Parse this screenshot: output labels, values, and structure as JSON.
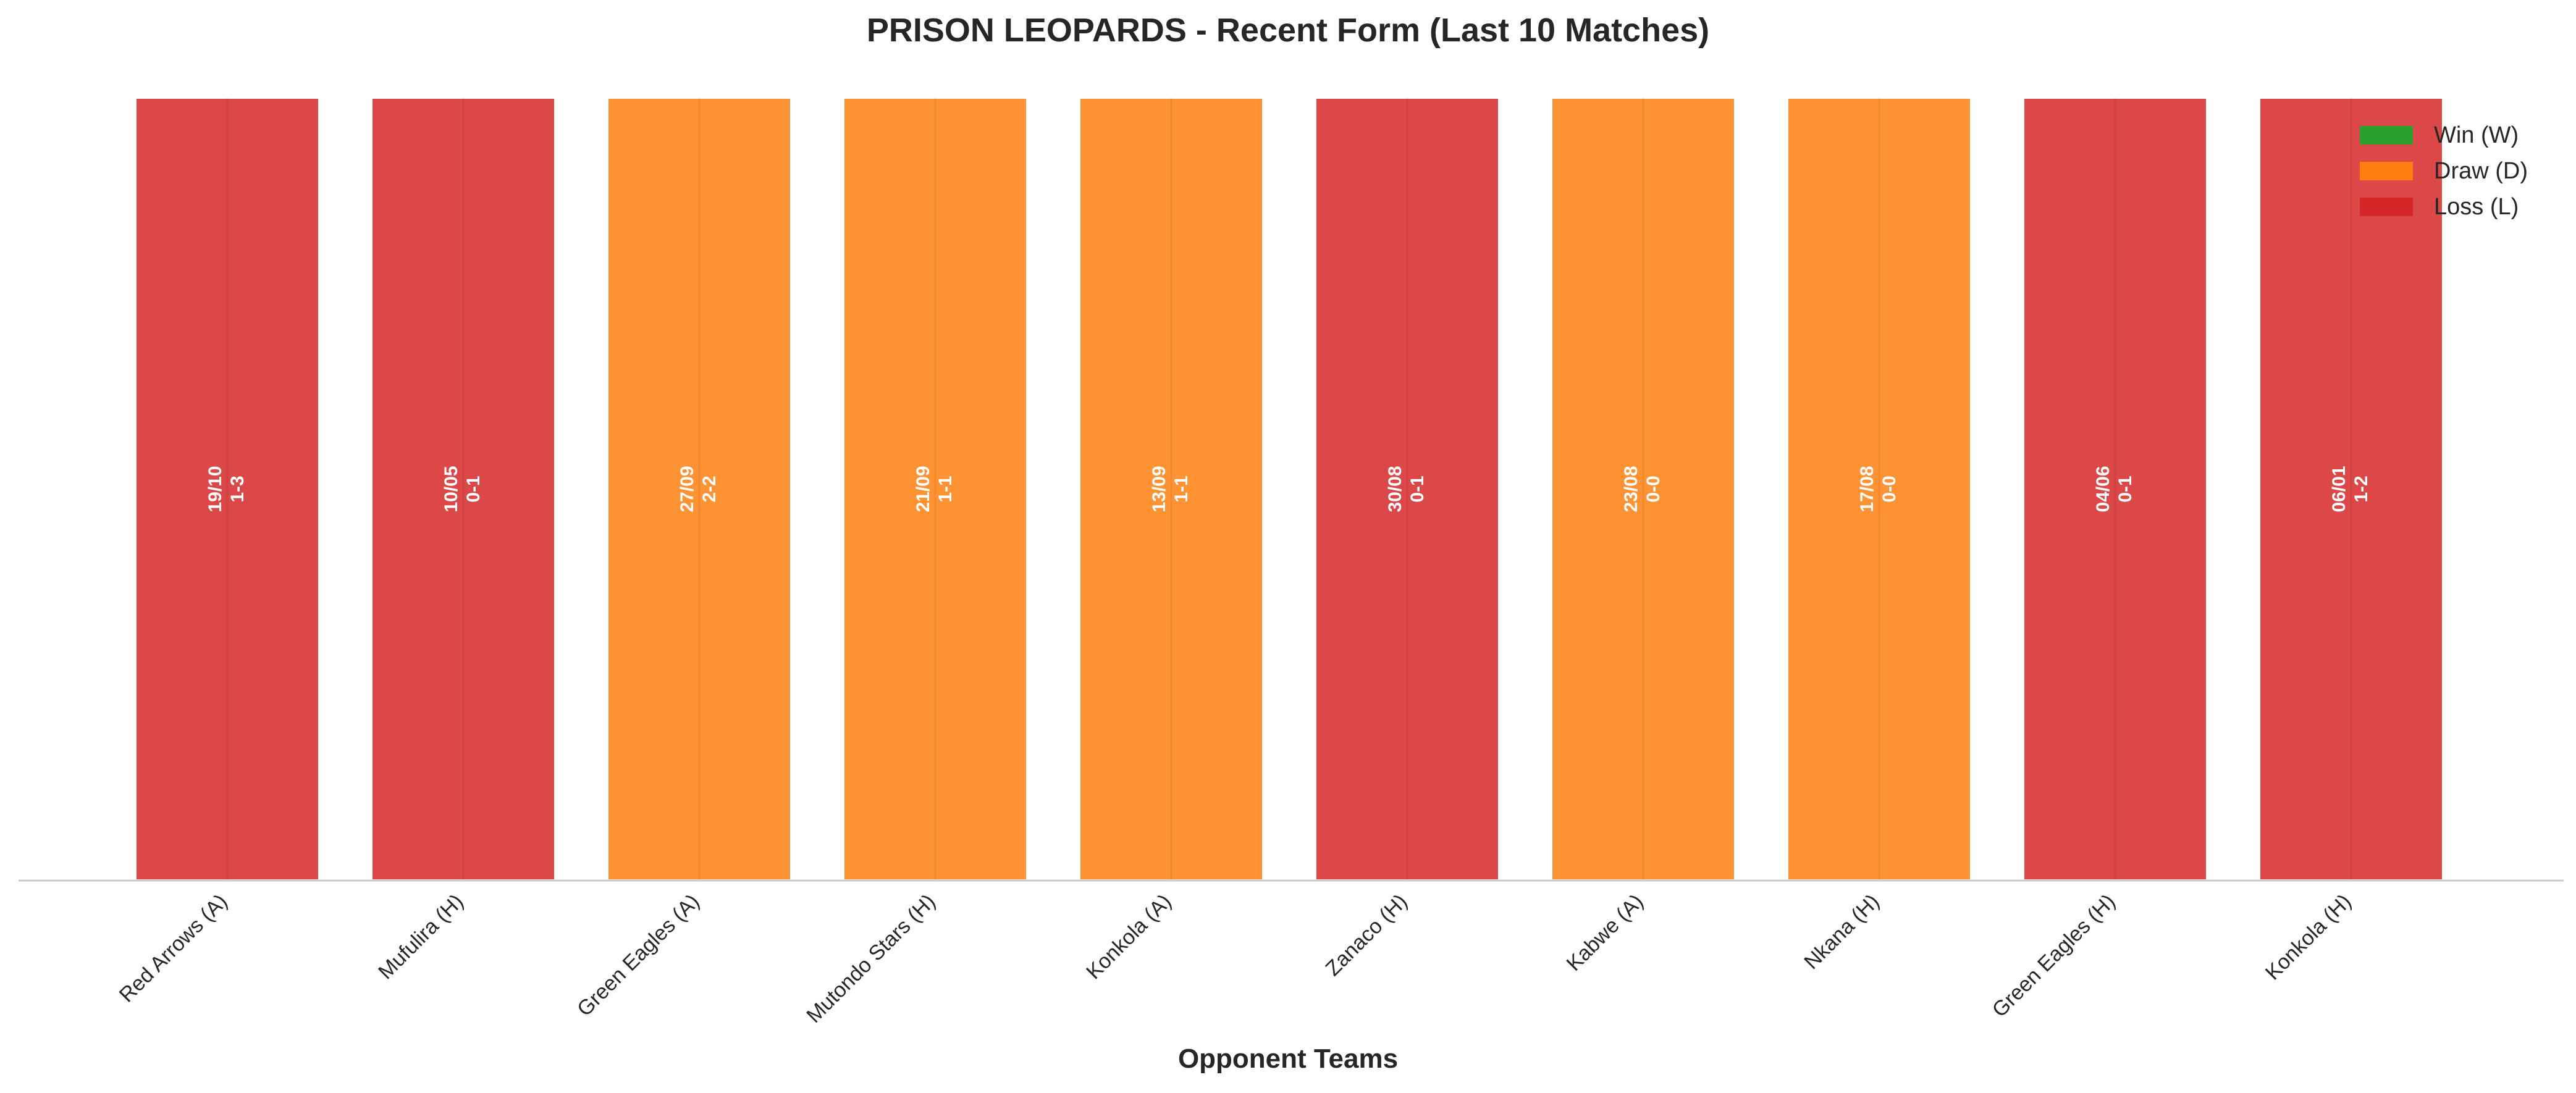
{
  "chart_data": {
    "type": "bar",
    "title": "PRISON LEOPARDS - Recent Form (Last 10 Matches)",
    "xlabel": "Opponent Teams",
    "ylabel": "",
    "grid": false,
    "legend_position": "top-right",
    "categories": [
      "Red Arrows (A)",
      "Mufulira (H)",
      "Green Eagles (A)",
      "Mutondo Stars (H)",
      "Konkola (A)",
      "Zanaco (H)",
      "Kabwe (A)",
      "Nkana (H)",
      "Green Eagles (H)",
      "Konkola (H)"
    ],
    "values": [
      1,
      1,
      1,
      1,
      1,
      1,
      1,
      1,
      1,
      1
    ],
    "results": [
      "L",
      "L",
      "D",
      "D",
      "D",
      "L",
      "D",
      "D",
      "L",
      "L"
    ],
    "dates": [
      "19/10",
      "10/05",
      "27/09",
      "21/09",
      "13/09",
      "30/08",
      "23/08",
      "17/08",
      "04/06",
      "06/01"
    ],
    "scores": [
      "1-3",
      "0-1",
      "2-2",
      "1-1",
      "1-1",
      "0-1",
      "0-0",
      "0-0",
      "0-1",
      "1-2"
    ],
    "legend": [
      {
        "key": "W",
        "label": "Win (W)",
        "color": "#2ca02c"
      },
      {
        "key": "D",
        "label": "Draw (D)",
        "color": "#ff7f0e"
      },
      {
        "key": "L",
        "label": "Loss (L)",
        "color": "#d62728"
      }
    ]
  }
}
